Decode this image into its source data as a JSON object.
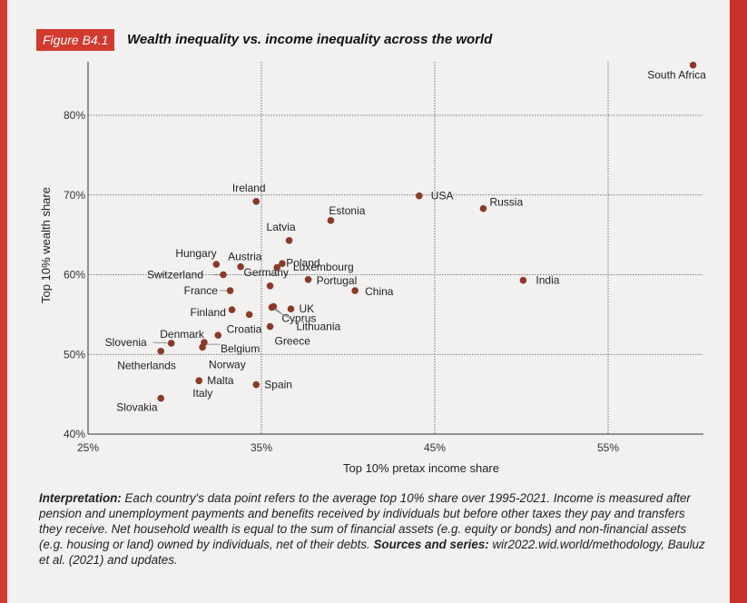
{
  "figure": {
    "label": "Figure B4.1",
    "title": "Wealth inequality vs. income inequality across the world"
  },
  "caption": {
    "interpretation_label": "Interpretation:",
    "interpretation_text": " Each country's data point refers to the average top 10% share over 1995-2021. Income is measured after pension and unemployment payments and benefits received by individuals but before other taxes they pay and transfers they receive. Net household wealth is equal to the sum of financial assets (e.g. equity or bonds) and non-financial assets (e.g. housing or land) owned by individuals, net of their debts.",
    "sources_label": " Sources and series:",
    "sources_text": " wir2022.wid.world/methodology, Bauluz et al. (2021) and updates."
  },
  "colors": {
    "accent": "#d23a30",
    "point": "#8b3a28",
    "grid": "#555555",
    "panel": "#f2f1f0"
  },
  "chart_data": {
    "type": "scatter",
    "xlabel": "Top 10% pretax income share",
    "ylabel": "Top 10% wealth share",
    "xlim": [
      25,
      60
    ],
    "ylim": [
      40,
      87
    ],
    "x_ticks": [
      25,
      35,
      45,
      55
    ],
    "x_tick_labels": [
      "25%",
      "35%",
      "45%",
      "55%"
    ],
    "y_ticks": [
      40,
      50,
      60,
      70,
      80
    ],
    "y_tick_labels": [
      "40%",
      "50%",
      "60%",
      "70%",
      "80%"
    ],
    "grid": true,
    "points": [
      {
        "name": "South Africa",
        "x": 59.9,
        "y": 86.3
      },
      {
        "name": "USA",
        "x": 44.1,
        "y": 69.9
      },
      {
        "name": "Russia",
        "x": 47.8,
        "y": 68.3
      },
      {
        "name": "India",
        "x": 50.1,
        "y": 59.3
      },
      {
        "name": "Ireland",
        "x": 34.7,
        "y": 69.2
      },
      {
        "name": "Estonia",
        "x": 39.0,
        "y": 66.8
      },
      {
        "name": "Latvia",
        "x": 36.6,
        "y": 64.3
      },
      {
        "name": "Luxembourg",
        "x": 36.2,
        "y": 61.4
      },
      {
        "name": "Poland",
        "x": 35.9,
        "y": 60.9
      },
      {
        "name": "Hungary",
        "x": 32.4,
        "y": 61.3
      },
      {
        "name": "Austria",
        "x": 33.8,
        "y": 61.0
      },
      {
        "name": "Switzerland",
        "x": 32.8,
        "y": 60.0
      },
      {
        "name": "Germany",
        "x": 35.5,
        "y": 58.6
      },
      {
        "name": "Portugal",
        "x": 37.7,
        "y": 59.4
      },
      {
        "name": "China",
        "x": 40.4,
        "y": 58.0
      },
      {
        "name": "France",
        "x": 33.2,
        "y": 58.0
      },
      {
        "name": "Cyprus",
        "x": 35.7,
        "y": 56.0
      },
      {
        "name": "UK",
        "x": 36.7,
        "y": 55.7
      },
      {
        "name": "Finland",
        "x": 33.3,
        "y": 55.6
      },
      {
        "name": "Croatia",
        "x": 34.3,
        "y": 55.0
      },
      {
        "name": "Lithuania",
        "x": 35.6,
        "y": 55.9
      },
      {
        "name": "Greece",
        "x": 35.5,
        "y": 53.5
      },
      {
        "name": "Denmark",
        "x": 32.5,
        "y": 52.4
      },
      {
        "name": "Belgium",
        "x": 31.7,
        "y": 51.5
      },
      {
        "name": "Slovenia",
        "x": 29.8,
        "y": 51.4
      },
      {
        "name": "Norway",
        "x": 31.6,
        "y": 50.9
      },
      {
        "name": "Netherlands",
        "x": 29.2,
        "y": 50.4
      },
      {
        "name": "Malta",
        "x": 31.4,
        "y": 46.7
      },
      {
        "name": "Spain",
        "x": 34.7,
        "y": 46.2
      },
      {
        "name": "Slovakia",
        "x": 29.2,
        "y": 44.5
      },
      {
        "name": "Italy",
        "x": 31.4,
        "y": 46.7
      }
    ]
  }
}
